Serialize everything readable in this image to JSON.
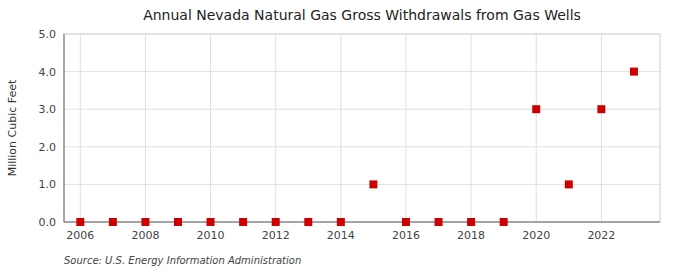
{
  "chart_data": {
    "type": "scatter",
    "title": "Annual Nevada Natural Gas Gross Withdrawals from Gas Wells",
    "ylabel": "Million Cubic Feet",
    "source": "Source: U.S. Energy Information Administration",
    "x": [
      2006,
      2007,
      2008,
      2009,
      2010,
      2011,
      2012,
      2013,
      2014,
      2015,
      2016,
      2017,
      2018,
      2019,
      2020,
      2021,
      2022,
      2023
    ],
    "values": [
      0.0,
      0.0,
      0.0,
      0.0,
      0.0,
      0.0,
      0.0,
      0.0,
      0.0,
      1.0,
      0.0,
      0.0,
      0.0,
      0.0,
      3.0,
      1.0,
      3.0,
      4.0
    ],
    "color": "#cc0000",
    "marker": "square",
    "xlim": [
      2005.5,
      2023.8
    ],
    "ylim": [
      0.0,
      5.0
    ],
    "xticks": [
      2006,
      2008,
      2010,
      2012,
      2014,
      2016,
      2018,
      2020,
      2022
    ],
    "yticks": [
      {
        "value": 0.0,
        "label": "0.0"
      },
      {
        "value": 1.0,
        "label": "1.0"
      },
      {
        "value": 2.0,
        "label": "2.0"
      },
      {
        "value": 3.0,
        "label": "3.0"
      },
      {
        "value": 4.0,
        "label": "4.0"
      },
      {
        "value": 5.0,
        "label": "5.0"
      }
    ],
    "grid": true
  }
}
